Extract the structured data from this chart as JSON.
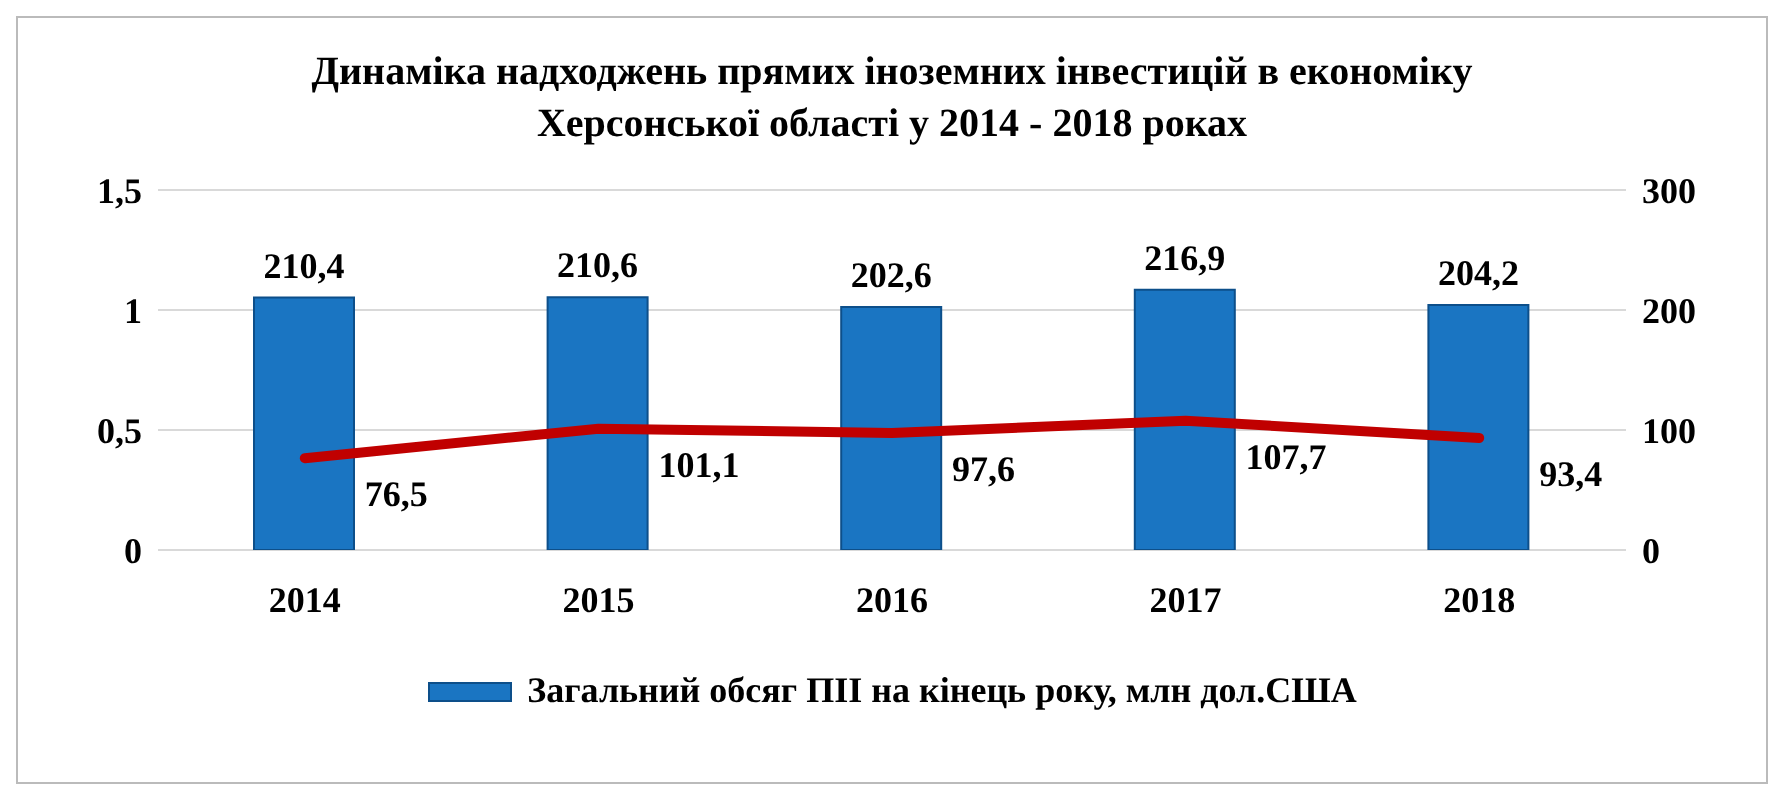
{
  "chart_data": {
    "type": "bar",
    "title": "Динаміка надходжень прямих іноземних інвестицій в економіку Херсонської області у 2014 - 2018 роках",
    "categories": [
      "2014",
      "2015",
      "2016",
      "2017",
      "2018"
    ],
    "series": [
      {
        "name": "Загальний обсяг ПІІ на кінець року, млн дол.США",
        "axis": "y2",
        "color": "#1a75c2",
        "values": [
          210.4,
          210.6,
          202.6,
          216.9,
          204.2
        ],
        "value_labels": [
          "210,4",
          "210,6",
          "202,6",
          "216,9",
          "204,2"
        ]
      },
      {
        "type": "line",
        "axis": "y2",
        "color": "#c00000",
        "values": [
          76.5,
          101.1,
          97.6,
          107.7,
          93.4
        ],
        "value_labels": [
          "76,5",
          "101,1",
          "97,6",
          "107,7",
          "93,4"
        ]
      }
    ],
    "ylim": [
      0,
      1.5
    ],
    "yticks": [
      0,
      {
        "value": 0.5,
        "label": "0,5"
      },
      1,
      {
        "value": 1.5,
        "label": "1,5"
      }
    ],
    "y2lim": [
      0,
      300
    ],
    "y2ticks": [
      0,
      100,
      200,
      300
    ],
    "grid": "y",
    "legend": "bottom",
    "marker": "none"
  }
}
